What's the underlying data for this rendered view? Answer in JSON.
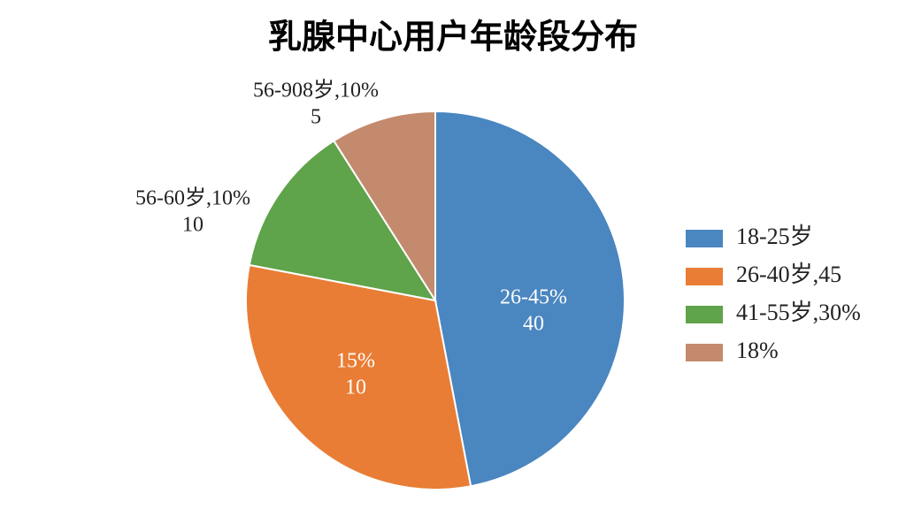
{
  "chart_data": {
    "type": "pie",
    "title": "乳腺中心用户年龄段分布",
    "categories": [
      "18-25岁",
      "26-40岁,45",
      "41-55岁,30%",
      "18%"
    ],
    "values": [
      47,
      31,
      13,
      9
    ],
    "colors": [
      "#4a86c0",
      "#e97d35",
      "#5fa34a",
      "#c48a6e"
    ],
    "slice_labels": [
      [
        "26-45%",
        "40"
      ],
      [
        "15%",
        "10"
      ],
      [
        "56-60岁,10%",
        "10"
      ],
      [
        "56-908岁,10%",
        "5"
      ]
    ],
    "legend": "right"
  }
}
